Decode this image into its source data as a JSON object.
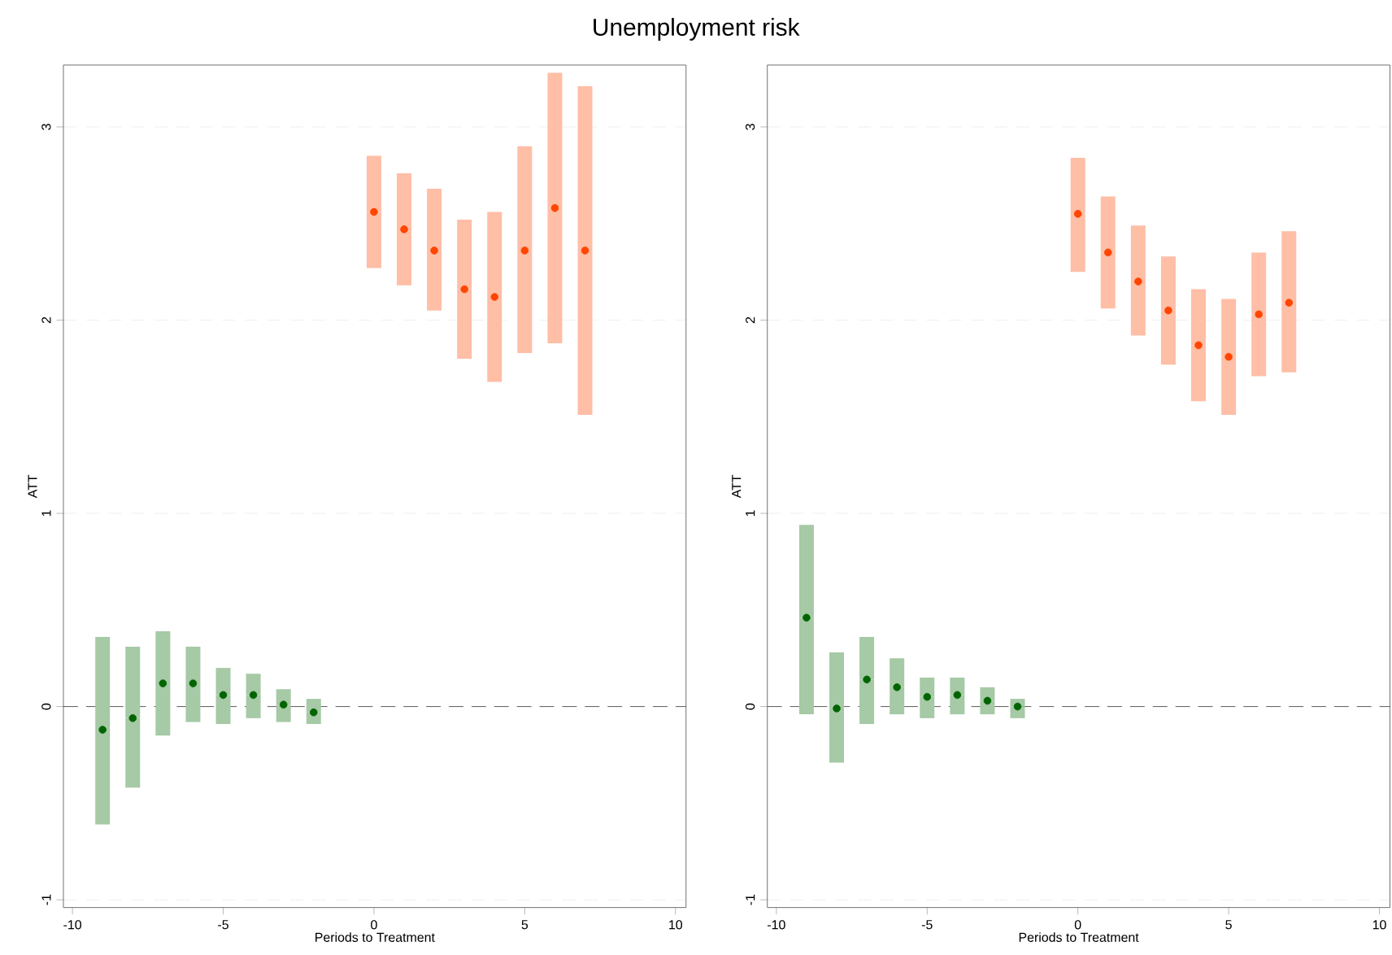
{
  "chart_data": [
    {
      "type": "scatter",
      "title": "Unemployment risk",
      "xlabel": "Periods to Treatment",
      "ylabel": "ATT",
      "xlim": [
        -10.3,
        10.35
      ],
      "ylim": [
        -1.04,
        3.32
      ],
      "xticks": [
        -10,
        -5,
        0,
        5,
        10
      ],
      "yticks": [
        -1,
        0,
        1,
        2,
        3
      ],
      "grid": "y",
      "ref_lines": [
        {
          "axis": "y",
          "value": 0,
          "color": "#333333",
          "line_style": "dashed"
        }
      ],
      "series": [
        {
          "color": "#006400",
          "x": [
            -9,
            -8,
            -7,
            -6,
            -5,
            -4,
            -3,
            -2
          ],
          "values": [
            -0.12,
            -0.06,
            0.12,
            0.12,
            0.06,
            0.06,
            0.01,
            -0.03
          ],
          "errors": [
            [
              -0.61,
              0.36
            ],
            [
              -0.42,
              0.31
            ],
            [
              -0.15,
              0.39
            ],
            [
              -0.08,
              0.31
            ],
            [
              -0.09,
              0.2
            ],
            [
              -0.06,
              0.17
            ],
            [
              -0.08,
              0.09
            ],
            [
              -0.09,
              0.04
            ]
          ]
        },
        {
          "color": "#ff4500",
          "x": [
            0,
            1,
            2,
            3,
            4,
            5,
            6,
            7
          ],
          "values": [
            2.56,
            2.47,
            2.36,
            2.16,
            2.12,
            2.36,
            2.58,
            2.36
          ],
          "errors": [
            [
              2.27,
              2.85
            ],
            [
              2.18,
              2.76
            ],
            [
              2.05,
              2.68
            ],
            [
              1.8,
              2.52
            ],
            [
              1.68,
              2.56
            ],
            [
              1.83,
              2.9
            ],
            [
              1.88,
              3.28
            ],
            [
              1.51,
              3.21
            ]
          ]
        }
      ]
    },
    {
      "type": "scatter",
      "xlabel": "Periods to Treatment",
      "ylabel": "ATT",
      "xlim": [
        -10.3,
        10.35
      ],
      "ylim": [
        -1.04,
        3.32
      ],
      "xticks": [
        -10,
        -5,
        0,
        5,
        10
      ],
      "yticks": [
        -1,
        0,
        1,
        2,
        3
      ],
      "grid": "y",
      "ref_lines": [
        {
          "axis": "y",
          "value": 0,
          "color": "#333333",
          "line_style": "dashed"
        }
      ],
      "series": [
        {
          "color": "#006400",
          "x": [
            -9,
            -8,
            -7,
            -6,
            -5,
            -4,
            -3,
            -2
          ],
          "values": [
            0.46,
            -0.01,
            0.14,
            0.1,
            0.05,
            0.06,
            0.03,
            0.0
          ],
          "errors": [
            [
              -0.04,
              0.94
            ],
            [
              -0.29,
              0.28
            ],
            [
              -0.09,
              0.36
            ],
            [
              -0.04,
              0.25
            ],
            [
              -0.06,
              0.15
            ],
            [
              -0.04,
              0.15
            ],
            [
              -0.04,
              0.1
            ],
            [
              -0.06,
              0.04
            ]
          ]
        },
        {
          "color": "#ff4500",
          "x": [
            0,
            1,
            2,
            3,
            4,
            5,
            6,
            7
          ],
          "values": [
            2.55,
            2.35,
            2.2,
            2.05,
            1.87,
            1.81,
            2.03,
            2.09
          ],
          "errors": [
            [
              2.25,
              2.84
            ],
            [
              2.06,
              2.64
            ],
            [
              1.92,
              2.49
            ],
            [
              1.77,
              2.33
            ],
            [
              1.58,
              2.16
            ],
            [
              1.51,
              2.11
            ],
            [
              1.71,
              2.35
            ],
            [
              1.73,
              2.46
            ]
          ]
        }
      ]
    }
  ]
}
